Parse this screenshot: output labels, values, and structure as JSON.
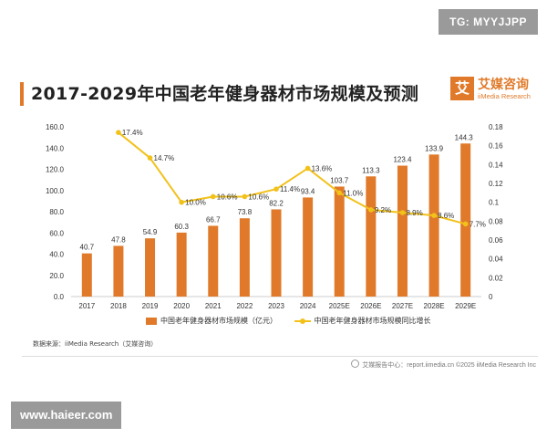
{
  "badge": "TG: MYYJJPP",
  "title": "2017-2029年中国老年健身器材市场规模及预测",
  "logo": {
    "cn": "艾媒咨询",
    "en": "iiMedia Research",
    "mark": "艾"
  },
  "legend": {
    "bar": "中国老年健身器材市场规模（亿元）",
    "line": "中国老年健身器材市场规模同比增长"
  },
  "source": "数据来源：iiMedia Research（艾媒咨询）",
  "footer": "艾媒报告中心：report.iimedia.cn  ©2025  iiMedia Research Inc",
  "watermark": "www.haieer.com",
  "colors": {
    "bar": "#e07a2a",
    "line": "#f2c11a",
    "accent": "#e07a2a"
  },
  "chart_data": {
    "type": "bar",
    "title": "2017-2029年中国老年健身器材市场规模及预测",
    "categories": [
      "2017",
      "2018",
      "2019",
      "2020",
      "2021",
      "2022",
      "2023",
      "2024",
      "2025E",
      "2026E",
      "2027E",
      "2028E",
      "2029E"
    ],
    "series": [
      {
        "name": "中国老年健身器材市场规模（亿元）",
        "type": "bar",
        "axis": "left",
        "values": [
          40.7,
          47.8,
          54.9,
          60.3,
          66.7,
          73.8,
          82.2,
          93.4,
          103.7,
          113.3,
          123.4,
          133.9,
          144.3
        ],
        "labels": [
          "40.7",
          "47.8",
          "54.9",
          "60.3",
          "66.7",
          "73.8",
          "82.2",
          "93.4",
          "103.7",
          "113.3",
          "123.4",
          "133.9",
          "144.3"
        ]
      },
      {
        "name": "中国老年健身器材市场规模同比增长",
        "type": "line",
        "axis": "right",
        "values": [
          null,
          0.174,
          0.147,
          0.1,
          0.106,
          0.106,
          0.114,
          0.136,
          0.11,
          0.092,
          0.089,
          0.086,
          0.077
        ],
        "labels": [
          "",
          "17.4%",
          "14.7%",
          "10.0%",
          "10.6%",
          "10.6%",
          "11.4%",
          "13.6%",
          "11.0%",
          "9.2%",
          "8.9%",
          "8.6%",
          "7.7%"
        ]
      }
    ],
    "yleft": {
      "min": 0,
      "max": 160,
      "ticks": [
        "0.0",
        "20.0",
        "40.0",
        "60.0",
        "80.0",
        "100.0",
        "120.0",
        "140.0",
        "160.0"
      ]
    },
    "yright": {
      "min": 0,
      "max": 0.18,
      "ticks": [
        "0",
        "0.02",
        "0.04",
        "0.06",
        "0.08",
        "0.1",
        "0.12",
        "0.14",
        "0.16",
        "0.18"
      ]
    },
    "grid": false,
    "legend_position": "bottom"
  }
}
